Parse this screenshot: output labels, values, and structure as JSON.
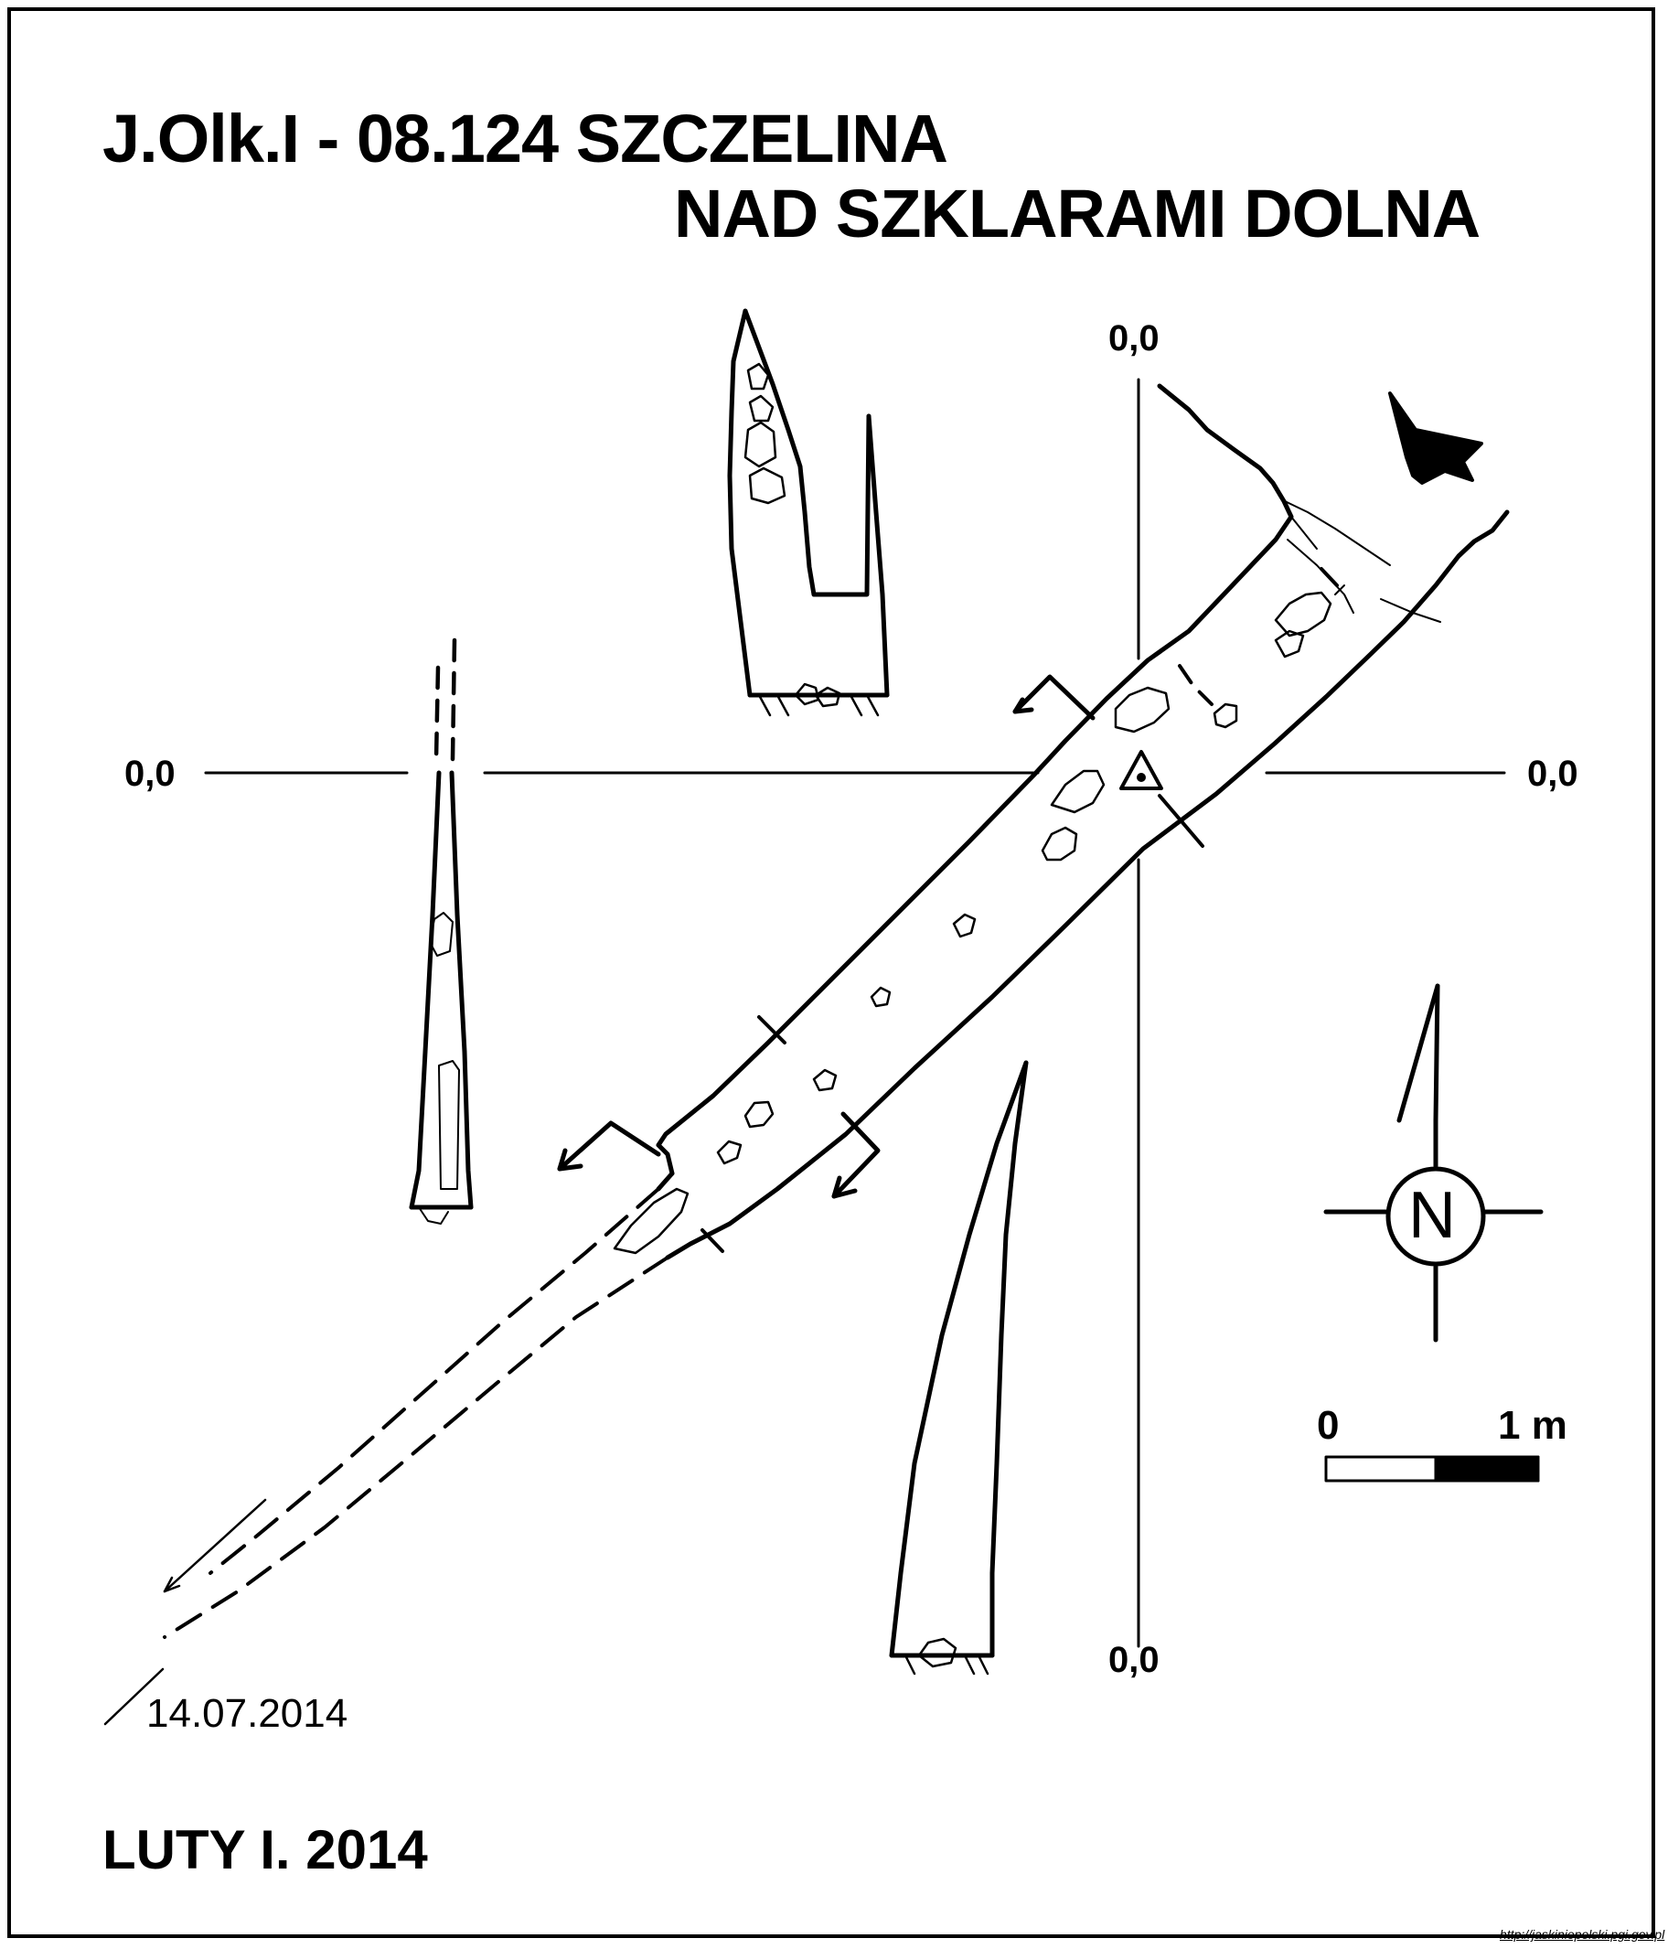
{
  "header": {
    "title_line1": "J.Olk.I - 08.124  SZCZELINA",
    "title_line2": "NAD SZKLARAMI DOLNA"
  },
  "axes": {
    "top": "0,0",
    "left": "0,0",
    "right": "0,0",
    "bottom": "0,0"
  },
  "compass": {
    "north_label": "N"
  },
  "scale_bar": {
    "start_label": "0",
    "end_label": "1 m"
  },
  "survey_date": "14.07.2014",
  "author": "LUTY I. 2014",
  "source": "http://jaskiniepolski.pgi.gov.pl",
  "colors": {
    "ink": "#000000",
    "paper": "#ffffff"
  }
}
